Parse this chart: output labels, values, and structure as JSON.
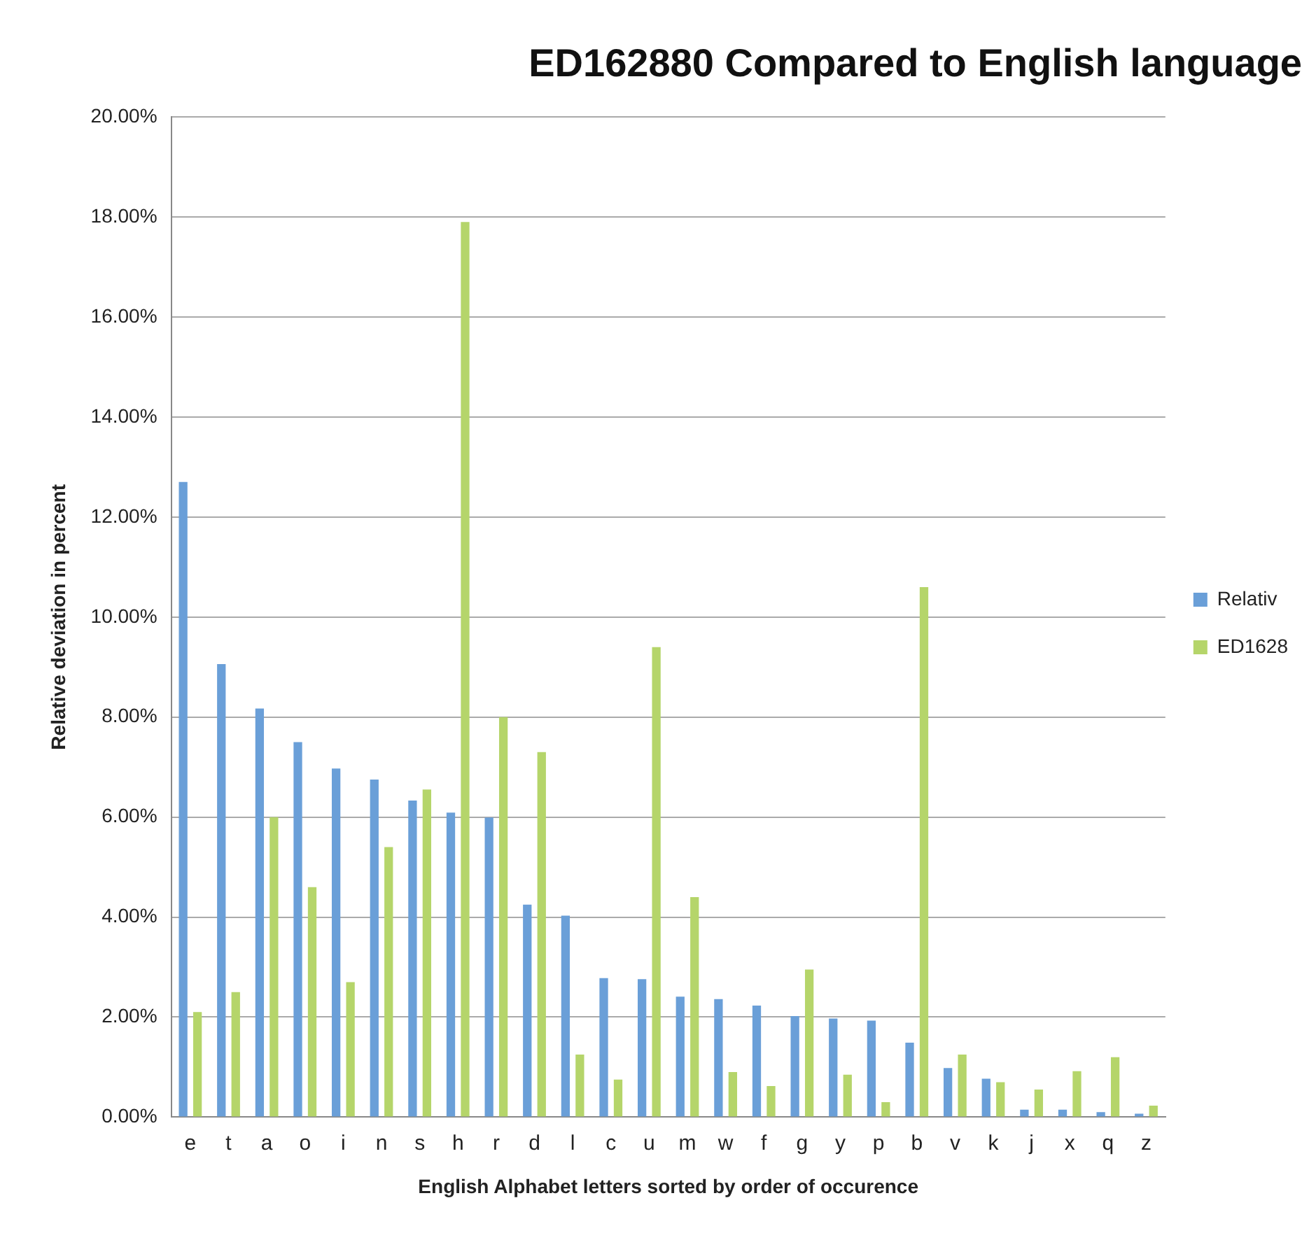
{
  "chart_data": {
    "type": "bar",
    "title": "ED162880 Compared to English language",
    "xlabel": "English Alphabet letters sorted by order of occurence",
    "ylabel": "Relative deviation in percent",
    "categories": [
      "e",
      "t",
      "a",
      "o",
      "i",
      "n",
      "s",
      "h",
      "r",
      "d",
      "l",
      "c",
      "u",
      "m",
      "w",
      "f",
      "g",
      "y",
      "p",
      "b",
      "v",
      "k",
      "j",
      "x",
      "q",
      "z"
    ],
    "series": [
      {
        "name": "Relativ",
        "color": "#6a9fd8",
        "values": [
          12.7,
          9.06,
          8.17,
          7.5,
          6.97,
          6.75,
          6.33,
          6.09,
          5.99,
          4.25,
          4.03,
          2.78,
          2.76,
          2.41,
          2.36,
          2.23,
          2.02,
          1.97,
          1.93,
          1.49,
          0.98,
          0.77,
          0.15,
          0.15,
          0.1,
          0.07
        ]
      },
      {
        "name": "ED1628",
        "color": "#b5d56a",
        "values": [
          2.1,
          2.5,
          6.0,
          4.6,
          2.7,
          5.4,
          6.55,
          17.9,
          8.0,
          7.3,
          1.25,
          0.75,
          9.4,
          4.4,
          0.9,
          0.62,
          2.95,
          0.85,
          0.3,
          10.6,
          1.25,
          0.7,
          0.55,
          0.92,
          1.2,
          0.23
        ]
      }
    ],
    "ylim": [
      0,
      20
    ],
    "yticks": [
      {
        "value": 0,
        "label": "0.00%"
      },
      {
        "value": 2,
        "label": "2.00%"
      },
      {
        "value": 4,
        "label": "4.00%"
      },
      {
        "value": 6,
        "label": "6.00%"
      },
      {
        "value": 8,
        "label": "8.00%"
      },
      {
        "value": 10,
        "label": "10.00%"
      },
      {
        "value": 12,
        "label": "12.00%"
      },
      {
        "value": 14,
        "label": "14.00%"
      },
      {
        "value": 16,
        "label": "16.00%"
      },
      {
        "value": 18,
        "label": "18.00%"
      },
      {
        "value": 20,
        "label": "20.00%"
      }
    ],
    "grid": "y",
    "legend": "right"
  }
}
